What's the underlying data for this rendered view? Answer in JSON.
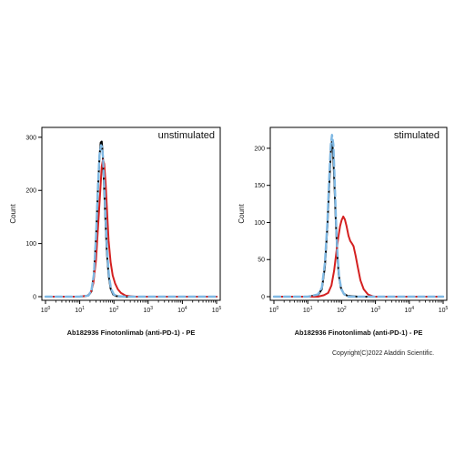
{
  "chart_data": [
    {
      "type": "line",
      "panel_label": "unstimulated",
      "xlabel": "Ab182936 Finotonlimab (anti-PD-1) - PE",
      "ylabel": "Count",
      "xscale": "log",
      "xlim": [
        1,
        100000
      ],
      "ylim": [
        0,
        310
      ],
      "y_ticks": [
        0,
        100,
        200,
        300
      ],
      "x_tick_exponents": [
        0,
        1,
        2,
        3,
        4,
        5
      ],
      "series": [
        {
          "color": "#000000",
          "style": "solid",
          "points": [
            [
              1,
              0
            ],
            [
              10,
              0
            ],
            [
              18,
              2
            ],
            [
              22,
              10
            ],
            [
              26,
              40
            ],
            [
              30,
              110
            ],
            [
              34,
              200
            ],
            [
              38,
              265
            ],
            [
              41,
              290
            ],
            [
              44,
              292
            ],
            [
              47,
              270
            ],
            [
              51,
              215
            ],
            [
              56,
              150
            ],
            [
              62,
              85
            ],
            [
              70,
              40
            ],
            [
              80,
              15
            ],
            [
              95,
              4
            ],
            [
              120,
              1
            ],
            [
              200,
              0
            ],
            [
              100000,
              0
            ]
          ]
        },
        {
          "color": "#d42020",
          "style": "solid",
          "points": [
            [
              1,
              0
            ],
            [
              10,
              0
            ],
            [
              17,
              2
            ],
            [
              21,
              8
            ],
            [
              25,
              25
            ],
            [
              30,
              70
            ],
            [
              35,
              140
            ],
            [
              40,
              200
            ],
            [
              44,
              245
            ],
            [
              48,
              258
            ],
            [
              52,
              250
            ],
            [
              57,
              215
            ],
            [
              63,
              160
            ],
            [
              70,
              105
            ],
            [
              80,
              65
            ],
            [
              92,
              40
            ],
            [
              108,
              25
            ],
            [
              130,
              14
            ],
            [
              160,
              7
            ],
            [
              220,
              2
            ],
            [
              400,
              0
            ],
            [
              100000,
              0
            ]
          ]
        },
        {
          "color": "#7fb8e3",
          "style": "dashed",
          "points": [
            [
              1,
              0
            ],
            [
              10,
              0
            ],
            [
              18,
              2
            ],
            [
              22,
              12
            ],
            [
              26,
              42
            ],
            [
              30,
              115
            ],
            [
              34,
              205
            ],
            [
              38,
              268
            ],
            [
              42,
              285
            ],
            [
              45,
              282
            ],
            [
              48,
              262
            ],
            [
              52,
              212
            ],
            [
              57,
              150
            ],
            [
              63,
              88
            ],
            [
              71,
              42
            ],
            [
              82,
              15
            ],
            [
              100,
              4
            ],
            [
              130,
              1
            ],
            [
              200,
              0
            ],
            [
              100000,
              0
            ]
          ]
        }
      ]
    },
    {
      "type": "line",
      "panel_label": "stimulated",
      "xlabel": "Ab182936 Finotonlimab (anti-PD-1) - PE",
      "ylabel": "Count",
      "xscale": "log",
      "xlim": [
        1,
        100000
      ],
      "ylim": [
        0,
        222
      ],
      "y_ticks": [
        0,
        50,
        100,
        150,
        200
      ],
      "x_tick_exponents": [
        0,
        1,
        2,
        3,
        4,
        5
      ],
      "series": [
        {
          "color": "#000000",
          "style": "solid",
          "points": [
            [
              1,
              0
            ],
            [
              10,
              0
            ],
            [
              20,
              2
            ],
            [
              26,
              10
            ],
            [
              32,
              40
            ],
            [
              38,
              95
            ],
            [
              43,
              150
            ],
            [
              48,
              195
            ],
            [
              52,
              210
            ],
            [
              56,
              195
            ],
            [
              61,
              155
            ],
            [
              67,
              105
            ],
            [
              74,
              60
            ],
            [
              82,
              30
            ],
            [
              95,
              12
            ],
            [
              115,
              4
            ],
            [
              150,
              1
            ],
            [
              300,
              0
            ],
            [
              100000,
              0
            ]
          ]
        },
        {
          "color": "#d42020",
          "style": "solid",
          "points": [
            [
              1,
              0
            ],
            [
              10,
              0
            ],
            [
              20,
              0
            ],
            [
              30,
              2
            ],
            [
              40,
              5
            ],
            [
              50,
              15
            ],
            [
              60,
              35
            ],
            [
              70,
              60
            ],
            [
              80,
              80
            ],
            [
              90,
              95
            ],
            [
              100,
              103
            ],
            [
              112,
              108
            ],
            [
              125,
              104
            ],
            [
              140,
              95
            ],
            [
              160,
              82
            ],
            [
              180,
              75
            ],
            [
              200,
              72
            ],
            [
              225,
              68
            ],
            [
              260,
              55
            ],
            [
              300,
              40
            ],
            [
              360,
              22
            ],
            [
              450,
              10
            ],
            [
              600,
              3
            ],
            [
              900,
              0
            ],
            [
              100000,
              0
            ]
          ]
        },
        {
          "color": "#7fb8e3",
          "style": "dashed",
          "points": [
            [
              1,
              0
            ],
            [
              10,
              0
            ],
            [
              20,
              3
            ],
            [
              26,
              12
            ],
            [
              32,
              45
            ],
            [
              38,
              100
            ],
            [
              43,
              160
            ],
            [
              48,
              205
            ],
            [
              52,
              218
            ],
            [
              57,
              205
            ],
            [
              62,
              160
            ],
            [
              68,
              105
            ],
            [
              75,
              60
            ],
            [
              84,
              28
            ],
            [
              98,
              10
            ],
            [
              120,
              3
            ],
            [
              160,
              0
            ],
            [
              100000,
              0
            ]
          ]
        }
      ]
    }
  ],
  "footer": "Copyright(C)2022 Aladdin Scientific."
}
